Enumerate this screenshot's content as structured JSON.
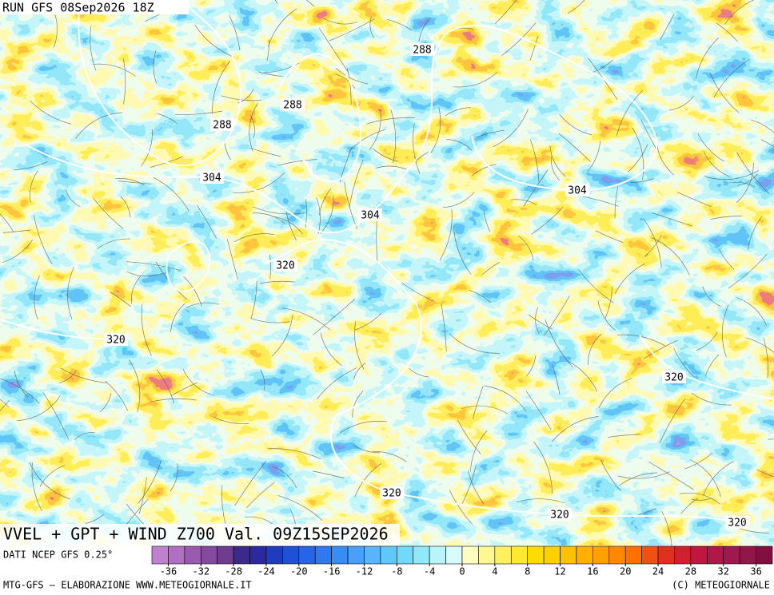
{
  "header": {
    "run": "RUN GFS 08Sep2026 18Z"
  },
  "map": {
    "title": "VVEL + GPT + WIND Z700 Val. 09Z15SEP2026",
    "contour_labels": [
      288,
      288,
      288,
      304,
      304,
      304,
      320,
      320,
      320,
      320,
      320,
      320
    ]
  },
  "colorbar": {
    "source": "DATI NCEP GFS 0.25°",
    "range": [
      -38,
      38
    ],
    "ticks": [
      -36,
      -32,
      -28,
      -24,
      -20,
      -16,
      -12,
      -8,
      -4,
      0,
      4,
      8,
      12,
      16,
      20,
      24,
      28,
      32,
      36
    ],
    "colors": [
      "#c080d0",
      "#b070c0",
      "#9a5ab0",
      "#844aa0",
      "#703c90",
      "#3a2a8c",
      "#2a2aa0",
      "#1f3cc0",
      "#1f50d8",
      "#2864e6",
      "#2f78f0",
      "#3a8cf5",
      "#4aa0f8",
      "#5ab4fa",
      "#60c8f8",
      "#70daf8",
      "#90e8f8",
      "#b8f4f8",
      "#d8fafa",
      "#fffcc0",
      "#fff890",
      "#fff060",
      "#ffe830",
      "#ffdc00",
      "#ffd000",
      "#ffc000",
      "#ffb000",
      "#ffa000",
      "#ff8800",
      "#ff7000",
      "#f05010",
      "#e03020",
      "#d02030",
      "#c01840",
      "#b01848",
      "#a01850",
      "#901848",
      "#801040"
    ]
  },
  "footer": {
    "left": "MTG-GFS — ELABORAZIONE WWW.METEOGIORNALE.IT",
    "right": "(C) METEOGIORNALE"
  }
}
